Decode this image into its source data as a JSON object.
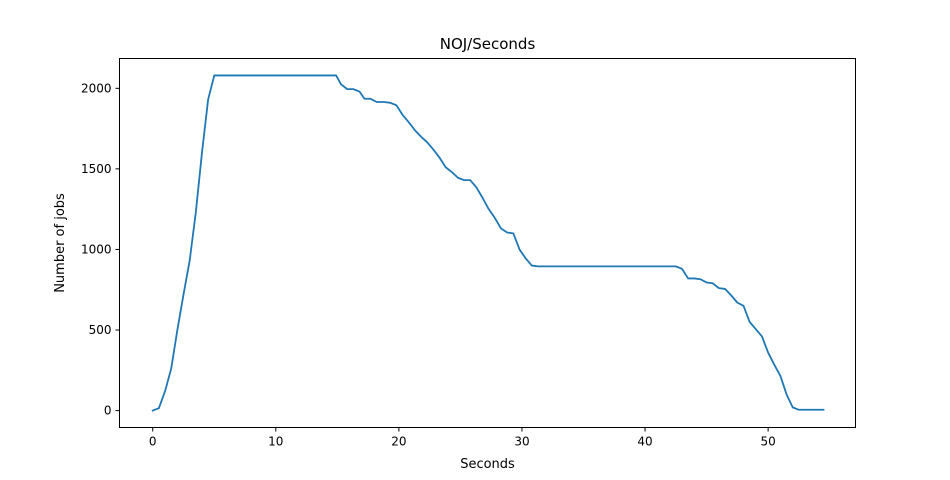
{
  "chart_data": {
    "type": "line",
    "title": "NOJ/Seconds",
    "xlabel": "Seconds",
    "ylabel": "Number of jobs",
    "xlim": [
      -2.7,
      57.1
    ],
    "ylim": [
      -105,
      2185
    ],
    "xticks": [
      0,
      10,
      20,
      30,
      40,
      50
    ],
    "yticks": [
      0,
      500,
      1000,
      1500,
      2000
    ],
    "grid": false,
    "legend": "none",
    "series": [
      {
        "color": "#1f77b4",
        "x": [
          0,
          0.5,
          1,
          1.5,
          2,
          2.5,
          3,
          3.5,
          4,
          4.5,
          5,
          5.5,
          6,
          7,
          8,
          9,
          10,
          11,
          12,
          13,
          14,
          14.9,
          15.3,
          15.8,
          16.3,
          16.8,
          17.2,
          17.7,
          18.2,
          18.8,
          19.3,
          19.8,
          20.3,
          20.8,
          21.3,
          21.8,
          22.3,
          22.8,
          23.3,
          23.8,
          24.3,
          24.8,
          25.3,
          25.8,
          26.3,
          26.8,
          27.3,
          27.8,
          28.3,
          28.8,
          29.3,
          29.8,
          30.3,
          30.8,
          31.3,
          31.6,
          33,
          35,
          37,
          39,
          41,
          42.5,
          43,
          43.5,
          44,
          44.5,
          45,
          45.5,
          46,
          46.5,
          47,
          47.5,
          48,
          48.5,
          49,
          49.5,
          50,
          50.5,
          51,
          51.5,
          52,
          52.5,
          53,
          53.5,
          54,
          54.5
        ],
        "y": [
          0,
          15,
          120,
          260,
          500,
          720,
          930,
          1230,
          1600,
          1930,
          2080,
          2080,
          2080,
          2080,
          2080,
          2080,
          2080,
          2080,
          2080,
          2080,
          2080,
          2080,
          2025,
          1995,
          1995,
          1980,
          1935,
          1935,
          1915,
          1915,
          1910,
          1895,
          1835,
          1790,
          1740,
          1700,
          1665,
          1620,
          1570,
          1510,
          1480,
          1445,
          1430,
          1430,
          1385,
          1320,
          1250,
          1195,
          1130,
          1105,
          1100,
          1000,
          945,
          900,
          895,
          895,
          895,
          895,
          895,
          895,
          895,
          895,
          880,
          820,
          820,
          815,
          795,
          790,
          760,
          755,
          715,
          670,
          650,
          550,
          505,
          460,
          360,
          285,
          215,
          100,
          20,
          5,
          5,
          5,
          5,
          5
        ]
      }
    ]
  }
}
